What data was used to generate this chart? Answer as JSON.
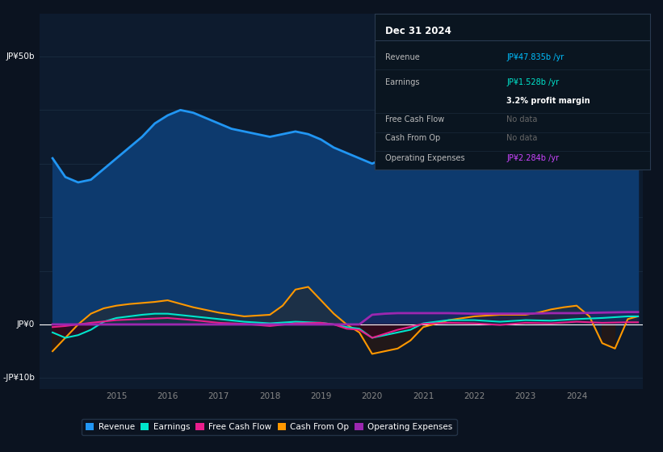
{
  "bg_color": "#0b1320",
  "chart_bg": "#0d1b2e",
  "title": "Dec 31 2024",
  "info_box": {
    "rows": [
      {
        "label": "Revenue",
        "value": "JP¥47.835b /yr",
        "value_color": "#00bfff",
        "label_color": "#cccccc"
      },
      {
        "label": "Earnings",
        "value": "JP¥1.528b /yr",
        "value_color": "#00e5cc",
        "label_color": "#cccccc"
      },
      {
        "label": "",
        "value": "3.2% profit margin",
        "value_color": "#ffffff",
        "label_color": "#cccccc"
      },
      {
        "label": "Free Cash Flow",
        "value": "No data",
        "value_color": "#666666",
        "label_color": "#cccccc"
      },
      {
        "label": "Cash From Op",
        "value": "No data",
        "value_color": "#666666",
        "label_color": "#cccccc"
      },
      {
        "label": "Operating Expenses",
        "value": "JP¥2.284b /yr",
        "value_color": "#cc44ff",
        "label_color": "#cccccc"
      }
    ]
  },
  "ylim": [
    -12,
    58
  ],
  "xlim_left": 2013.5,
  "xlim_right": 2025.3,
  "xticks": [
    2015,
    2016,
    2017,
    2018,
    2019,
    2020,
    2021,
    2022,
    2023,
    2024
  ],
  "grid_color": "#1a2c40",
  "zero_line_color": "#ffffff",
  "revenue": {
    "x": [
      2013.75,
      2014.0,
      2014.25,
      2014.5,
      2014.75,
      2015.0,
      2015.25,
      2015.5,
      2015.75,
      2016.0,
      2016.25,
      2016.5,
      2016.75,
      2017.0,
      2017.25,
      2017.5,
      2017.75,
      2018.0,
      2018.25,
      2018.5,
      2018.75,
      2019.0,
      2019.25,
      2019.5,
      2019.75,
      2020.0,
      2020.25,
      2020.5,
      2020.75,
      2021.0,
      2021.25,
      2021.5,
      2021.75,
      2022.0,
      2022.25,
      2022.5,
      2022.75,
      2023.0,
      2023.25,
      2023.5,
      2023.75,
      2024.0,
      2024.25,
      2024.5,
      2024.75,
      2025.0,
      2025.2
    ],
    "y": [
      31,
      27.5,
      26.5,
      27,
      29,
      31,
      33,
      35,
      37.5,
      39,
      40,
      39.5,
      38.5,
      37.5,
      36.5,
      36,
      35.5,
      35,
      35.5,
      36,
      35.5,
      34.5,
      33,
      32,
      31,
      30,
      31,
      32,
      33.5,
      35,
      36,
      37,
      37.5,
      37,
      34,
      31,
      29,
      30,
      33,
      35.5,
      37.5,
      40,
      42,
      44.5,
      47,
      47.8,
      48
    ],
    "color": "#2196f3",
    "fill_color": "#0d3a6e",
    "lw": 2.0
  },
  "earnings": {
    "x": [
      2013.75,
      2014.0,
      2014.25,
      2014.5,
      2014.75,
      2015.0,
      2015.25,
      2015.5,
      2015.75,
      2016.0,
      2016.5,
      2017.0,
      2017.5,
      2018.0,
      2018.5,
      2019.0,
      2019.25,
      2019.5,
      2019.75,
      2020.0,
      2020.25,
      2020.5,
      2020.75,
      2021.0,
      2021.5,
      2022.0,
      2022.5,
      2023.0,
      2023.5,
      2024.0,
      2024.5,
      2025.0,
      2025.2
    ],
    "y": [
      -1.5,
      -2.5,
      -2,
      -1,
      0.5,
      1.2,
      1.5,
      1.8,
      2.0,
      2.0,
      1.5,
      1.0,
      0.5,
      0.2,
      0.5,
      0.3,
      0,
      -0.5,
      -0.8,
      -2.5,
      -2.0,
      -1.5,
      -1.0,
      0.2,
      0.8,
      0.8,
      0.5,
      0.8,
      0.7,
      1.0,
      1.2,
      1.5,
      1.5
    ],
    "color": "#00e5cc",
    "lw": 1.5
  },
  "free_cash_flow": {
    "x": [
      2013.75,
      2014.0,
      2014.5,
      2015.0,
      2015.5,
      2016.0,
      2016.5,
      2017.0,
      2017.5,
      2018.0,
      2018.5,
      2019.0,
      2019.25,
      2019.5,
      2019.75,
      2020.0,
      2020.5,
      2021.0,
      2021.5,
      2022.0,
      2022.5,
      2023.0,
      2023.5,
      2024.0,
      2024.5,
      2025.0,
      2025.2
    ],
    "y": [
      -0.5,
      -0.3,
      0.3,
      0.8,
      1.0,
      1.2,
      0.8,
      0.3,
      0.1,
      -0.3,
      0.2,
      0.3,
      0,
      -0.8,
      -1.0,
      -2.5,
      -1.0,
      0.1,
      0.3,
      0.2,
      -0.1,
      0.3,
      0.2,
      0.5,
      0.3,
      0.4,
      0.4
    ],
    "color": "#e91e8c",
    "lw": 1.5
  },
  "cash_from_op": {
    "x": [
      2013.75,
      2014.0,
      2014.25,
      2014.5,
      2014.75,
      2015.0,
      2015.25,
      2015.5,
      2015.75,
      2016.0,
      2016.5,
      2017.0,
      2017.5,
      2018.0,
      2018.25,
      2018.5,
      2018.75,
      2019.0,
      2019.25,
      2019.5,
      2019.75,
      2020.0,
      2020.25,
      2020.5,
      2020.75,
      2021.0,
      2021.5,
      2022.0,
      2022.5,
      2023.0,
      2023.25,
      2023.5,
      2023.75,
      2024.0,
      2024.25,
      2024.5,
      2024.75,
      2025.0,
      2025.2
    ],
    "y": [
      -5,
      -2.5,
      0,
      2,
      3,
      3.5,
      3.8,
      4.0,
      4.2,
      4.5,
      3.2,
      2.2,
      1.5,
      1.8,
      3.5,
      6.5,
      7.0,
      4.5,
      2.0,
      0.0,
      -1.5,
      -5.5,
      -5.0,
      -4.5,
      -3.0,
      -0.5,
      0.8,
      1.5,
      1.8,
      1.8,
      2.2,
      2.8,
      3.2,
      3.5,
      1.5,
      -3.5,
      -4.5,
      1.0,
      1.5
    ],
    "color": "#ff9800",
    "lw": 1.5
  },
  "op_expenses": {
    "x": [
      2013.75,
      2019.75,
      2020.0,
      2020.25,
      2020.5,
      2020.75,
      2021.0,
      2021.5,
      2022.0,
      2022.5,
      2023.0,
      2023.5,
      2024.0,
      2024.5,
      2025.0,
      2025.2
    ],
    "y": [
      0,
      0,
      1.8,
      2.0,
      2.1,
      2.1,
      2.1,
      2.1,
      2.0,
      2.0,
      2.0,
      2.1,
      2.1,
      2.2,
      2.3,
      2.3
    ],
    "color": "#9c27b0",
    "lw": 2.0
  },
  "legend": [
    {
      "label": "Revenue",
      "color": "#2196f3"
    },
    {
      "label": "Earnings",
      "color": "#00e5cc"
    },
    {
      "label": "Free Cash Flow",
      "color": "#e91e8c"
    },
    {
      "label": "Cash From Op",
      "color": "#ff9800"
    },
    {
      "label": "Operating Expenses",
      "color": "#9c27b0"
    }
  ]
}
